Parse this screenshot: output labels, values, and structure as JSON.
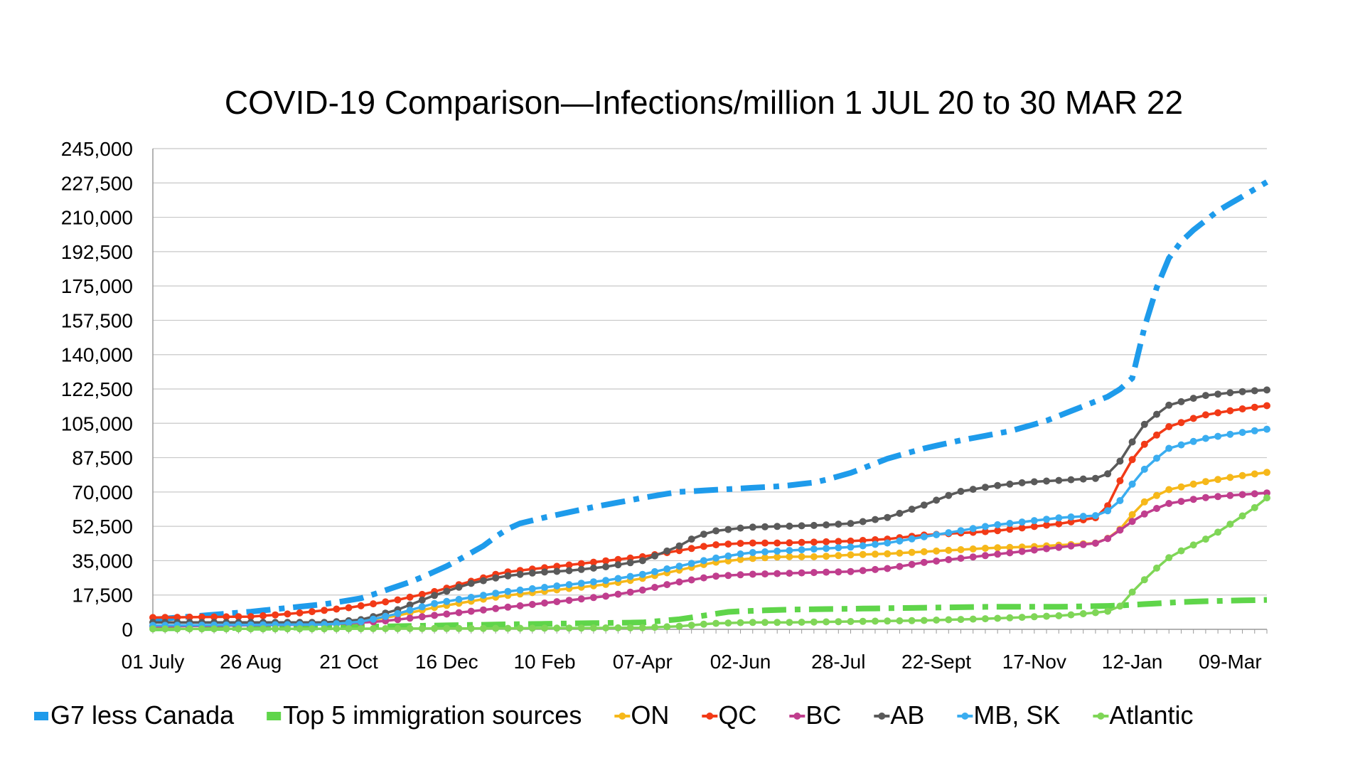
{
  "chart_data": {
    "type": "line",
    "title": "COVID-19 Comparison—Infections/million 1 JUL 20 to 30 MAR 22",
    "xlabel": "",
    "ylabel": "",
    "ylim": [
      0,
      245000
    ],
    "yticks": [
      "0",
      "17,500",
      "35,000",
      "52,500",
      "70,000",
      "87,500",
      "105,000",
      "122,500",
      "140,000",
      "157,500",
      "175,000",
      "192,500",
      "210,000",
      "227,500",
      "245,000"
    ],
    "xticks": [
      "01 July",
      "26 Aug",
      "21 Oct",
      "16 Dec",
      "10 Feb",
      "07-Apr",
      "02-Jun",
      "28-Jul",
      "22-Sept",
      "17-Nov",
      "12-Jan",
      "09-Mar"
    ],
    "x_tick_days": [
      0,
      56,
      112,
      168,
      224,
      280,
      336,
      392,
      448,
      504,
      560,
      616
    ],
    "x_range_days": [
      0,
      637
    ],
    "grid": "horizontal",
    "legend_position": "bottom",
    "series": [
      {
        "name": "G7 less Canada",
        "color": "#1E9BEB",
        "style": "dashdot",
        "x": [
          0,
          56,
          100,
          120,
          150,
          170,
          190,
          200,
          210,
          224,
          250,
          280,
          300,
          320,
          340,
          360,
          380,
          400,
          420,
          440,
          460,
          490,
          510,
          530,
          550,
          560,
          570,
          580,
          590,
          600,
          610,
          620,
          637
        ],
        "y": [
          5000,
          9000,
          13000,
          16000,
          25000,
          33000,
          43000,
          50000,
          54000,
          57000,
          62000,
          67000,
          70000,
          71000,
          72000,
          73000,
          75000,
          80000,
          87000,
          92000,
          96000,
          101000,
          106000,
          113000,
          120000,
          128000,
          165000,
          188000,
          200000,
          207000,
          214000,
          219000,
          228000
        ]
      },
      {
        "name": "Top 5 immigration sources",
        "color": "#5FD54A",
        "style": "dashdot",
        "x": [
          0,
          100,
          200,
          240,
          280,
          300,
          330,
          360,
          400,
          440,
          480,
          520,
          550,
          570,
          590,
          610,
          637
        ],
        "y": [
          500,
          1000,
          2500,
          3000,
          3500,
          5000,
          9000,
          10000,
          10500,
          11000,
          11500,
          11500,
          12000,
          13000,
          14000,
          14500,
          15000
        ]
      },
      {
        "name": "ON",
        "color": "#F6B81A",
        "style": "marker",
        "x": [
          0,
          100,
          120,
          140,
          160,
          180,
          200,
          220,
          240,
          260,
          280,
          300,
          320,
          340,
          360,
          380,
          400,
          420,
          440,
          460,
          480,
          500,
          520,
          540,
          550,
          555,
          565,
          580,
          600,
          620,
          637
        ],
        "y": [
          1500,
          3000,
          4000,
          7000,
          11000,
          14000,
          17000,
          19000,
          21000,
          23000,
          26000,
          30000,
          34000,
          36000,
          37000,
          37000,
          38000,
          38500,
          39500,
          40500,
          41500,
          42000,
          43000,
          44000,
          48000,
          53000,
          64000,
          71000,
          75000,
          78000,
          80000
        ]
      },
      {
        "name": "QC",
        "color": "#F23A17",
        "style": "marker",
        "x": [
          0,
          56,
          80,
          112,
          140,
          160,
          180,
          200,
          220,
          240,
          260,
          280,
          300,
          320,
          340,
          360,
          380,
          400,
          420,
          440,
          460,
          480,
          500,
          520,
          540,
          548,
          555,
          565,
          580,
          600,
          620,
          637
        ],
        "y": [
          6000,
          6500,
          8000,
          11000,
          15000,
          19000,
          24000,
          29000,
          31000,
          33000,
          35000,
          37000,
          40000,
          43000,
          44000,
          44000,
          44500,
          45000,
          46000,
          48000,
          49000,
          50000,
          52000,
          54000,
          57000,
          65000,
          80000,
          93000,
          103000,
          109000,
          112000,
          114000
        ]
      },
      {
        "name": "BC",
        "color": "#C03E8E",
        "style": "marker",
        "x": [
          0,
          100,
          130,
          160,
          180,
          200,
          220,
          240,
          260,
          280,
          300,
          320,
          340,
          360,
          380,
          400,
          420,
          440,
          460,
          480,
          500,
          520,
          540,
          548,
          555,
          565,
          580,
          600,
          620,
          637
        ],
        "y": [
          1500,
          2500,
          4000,
          7000,
          9000,
          11000,
          13000,
          15000,
          17000,
          20000,
          24000,
          27000,
          28000,
          28500,
          29000,
          29500,
          31000,
          34000,
          36000,
          38000,
          40000,
          42000,
          44000,
          47000,
          52000,
          58000,
          64000,
          67000,
          68500,
          69500
        ]
      },
      {
        "name": "AB",
        "color": "#5A5A5A",
        "style": "marker",
        "x": [
          0,
          100,
          120,
          140,
          160,
          180,
          200,
          220,
          240,
          260,
          280,
          300,
          310,
          320,
          340,
          360,
          380,
          400,
          420,
          440,
          460,
          480,
          500,
          520,
          540,
          548,
          555,
          565,
          580,
          600,
          620,
          637
        ],
        "y": [
          3500,
          3500,
          5000,
          10000,
          17000,
          23000,
          27000,
          29000,
          30000,
          32000,
          35000,
          42000,
          47000,
          50000,
          52000,
          52500,
          53000,
          54000,
          57000,
          63000,
          70000,
          73000,
          75000,
          76000,
          77000,
          80000,
          88000,
          103000,
          114000,
          119000,
          121000,
          122000
        ]
      },
      {
        "name": "MB, SK",
        "color": "#3AADF0",
        "style": "marker",
        "x": [
          0,
          100,
          120,
          140,
          160,
          180,
          200,
          220,
          240,
          260,
          280,
          300,
          320,
          340,
          360,
          380,
          400,
          420,
          440,
          460,
          480,
          500,
          520,
          540,
          550,
          555,
          565,
          580,
          600,
          620,
          637
        ],
        "y": [
          2000,
          2500,
          4000,
          8000,
          13000,
          16000,
          19000,
          21000,
          23000,
          25000,
          28000,
          32000,
          36000,
          39000,
          40000,
          41000,
          42000,
          44000,
          47000,
          50000,
          53000,
          55000,
          57000,
          58000,
          62000,
          68000,
          80000,
          92000,
          97000,
          100000,
          102000
        ]
      },
      {
        "name": "Atlantic",
        "color": "#7FD657",
        "style": "marker",
        "x": [
          0,
          100,
          200,
          280,
          300,
          320,
          340,
          360,
          400,
          440,
          480,
          520,
          545,
          550,
          555,
          560,
          570,
          580,
          590,
          600,
          610,
          620,
          630,
          637
        ],
        "y": [
          200,
          300,
          500,
          800,
          1500,
          3000,
          3500,
          3500,
          4000,
          4500,
          5500,
          7000,
          9000,
          10000,
          13000,
          19000,
          28000,
          36000,
          41000,
          45000,
          50000,
          56000,
          62000,
          67000
        ]
      }
    ]
  }
}
